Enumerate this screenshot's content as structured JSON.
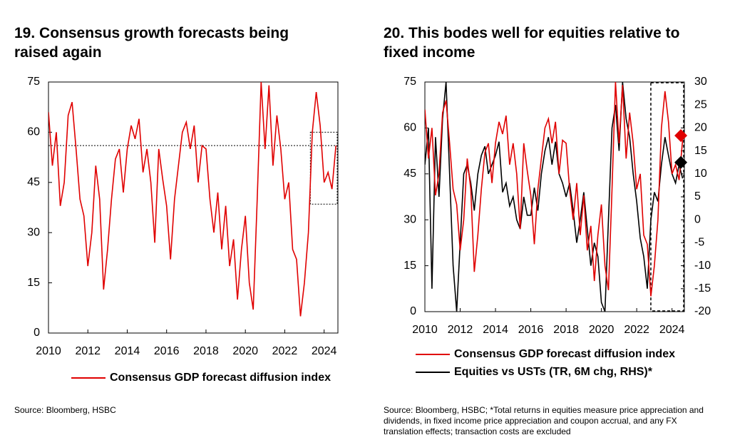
{
  "chart_data": [
    {
      "type": "line",
      "title": "19. Consensus growth forecasts being raised again",
      "x": [
        2010.0,
        2010.2,
        2010.4,
        2010.6,
        2010.8,
        2011.0,
        2011.2,
        2011.4,
        2011.6,
        2011.8,
        2012.0,
        2012.2,
        2012.4,
        2012.6,
        2012.8,
        2013.0,
        2013.2,
        2013.4,
        2013.6,
        2013.8,
        2014.0,
        2014.2,
        2014.4,
        2014.6,
        2014.8,
        2015.0,
        2015.2,
        2015.4,
        2015.6,
        2015.8,
        2016.0,
        2016.2,
        2016.4,
        2016.6,
        2016.8,
        2017.0,
        2017.2,
        2017.4,
        2017.6,
        2017.8,
        2018.0,
        2018.2,
        2018.4,
        2018.6,
        2018.8,
        2019.0,
        2019.2,
        2019.4,
        2019.6,
        2019.8,
        2020.0,
        2020.2,
        2020.4,
        2020.6,
        2020.8,
        2021.0,
        2021.2,
        2021.4,
        2021.6,
        2021.8,
        2022.0,
        2022.2,
        2022.4,
        2022.6,
        2022.8,
        2023.0,
        2023.2,
        2023.4,
        2023.6,
        2023.8,
        2024.0,
        2024.2,
        2024.4,
        2024.6
      ],
      "series": [
        {
          "name": "Consensus GDP forecast diffusion index",
          "color": "#e00000",
          "values": [
            66,
            50,
            60,
            38,
            45,
            65,
            69,
            55,
            40,
            35,
            20,
            30,
            50,
            40,
            13,
            25,
            40,
            52,
            55,
            42,
            55,
            62,
            58,
            64,
            48,
            55,
            45,
            27,
            55,
            46,
            38,
            22,
            40,
            50,
            60,
            63,
            55,
            62,
            45,
            56,
            55,
            40,
            30,
            42,
            25,
            38,
            20,
            28,
            10,
            25,
            35,
            15,
            7,
            40,
            75,
            55,
            74,
            50,
            65,
            55,
            40,
            45,
            25,
            22,
            5,
            15,
            30,
            60,
            72,
            62,
            45,
            48,
            43,
            56
          ]
        }
      ],
      "xlim": [
        2010,
        2024.7
      ],
      "xticks": [
        2010,
        2012,
        2014,
        2016,
        2018,
        2020,
        2022,
        2024
      ],
      "ylim": [
        0,
        75
      ],
      "yticks": [
        0,
        15,
        30,
        45,
        60,
        75
      ],
      "reference_line": 56,
      "highlight_box": {
        "x": [
          2023.3,
          2024.7
        ],
        "y": [
          38.5,
          60
        ]
      },
      "source": "Source: Bloomberg, HSBC"
    },
    {
      "type": "line",
      "title": "20. This bodes well for equities relative to fixed income",
      "x": [
        2010.0,
        2010.2,
        2010.4,
        2010.6,
        2010.8,
        2011.0,
        2011.2,
        2011.4,
        2011.6,
        2011.8,
        2012.0,
        2012.2,
        2012.4,
        2012.6,
        2012.8,
        2013.0,
        2013.2,
        2013.4,
        2013.6,
        2013.8,
        2014.0,
        2014.2,
        2014.4,
        2014.6,
        2014.8,
        2015.0,
        2015.2,
        2015.4,
        2015.6,
        2015.8,
        2016.0,
        2016.2,
        2016.4,
        2016.6,
        2016.8,
        2017.0,
        2017.2,
        2017.4,
        2017.6,
        2017.8,
        2018.0,
        2018.2,
        2018.4,
        2018.6,
        2018.8,
        2019.0,
        2019.2,
        2019.4,
        2019.6,
        2019.8,
        2020.0,
        2020.2,
        2020.4,
        2020.6,
        2020.8,
        2021.0,
        2021.2,
        2021.4,
        2021.6,
        2021.8,
        2022.0,
        2022.2,
        2022.4,
        2022.6,
        2022.8,
        2023.0,
        2023.2,
        2023.4,
        2023.6,
        2023.8,
        2024.0,
        2024.2,
        2024.4,
        2024.6
      ],
      "series": [
        {
          "name": "Consensus GDP forecast diffusion index",
          "color": "#e00000",
          "values": [
            66,
            50,
            60,
            38,
            45,
            65,
            69,
            55,
            40,
            35,
            20,
            30,
            50,
            40,
            13,
            25,
            40,
            52,
            55,
            42,
            55,
            62,
            58,
            64,
            48,
            55,
            45,
            27,
            55,
            46,
            38,
            22,
            40,
            50,
            60,
            63,
            55,
            62,
            45,
            56,
            55,
            40,
            30,
            42,
            25,
            38,
            20,
            28,
            10,
            25,
            35,
            15,
            7,
            40,
            75,
            55,
            74,
            50,
            65,
            55,
            40,
            45,
            25,
            22,
            5,
            15,
            30,
            60,
            72,
            62,
            45,
            48,
            43,
            56
          ],
          "marker": {
            "x": 2024.5,
            "value": 57.5
          }
        },
        {
          "name": "Equities vs USTs (TR, 6M chg, RHS)*",
          "color": "#000000",
          "axis": "y2",
          "values": [
            12,
            20,
            -15,
            18,
            5,
            22,
            30,
            10,
            -10,
            -20,
            -5,
            10,
            12,
            8,
            2,
            10,
            14,
            16,
            10,
            12,
            14,
            17,
            6,
            8,
            3,
            5,
            0,
            -2,
            5,
            1,
            1,
            7,
            2,
            10,
            15,
            18,
            12,
            17,
            10,
            8,
            5,
            8,
            2,
            -5,
            0,
            6,
            -2,
            -10,
            -5,
            -8,
            -18,
            -20,
            0,
            20,
            25,
            15,
            30,
            22,
            18,
            10,
            4,
            -4,
            -8,
            -15,
            0,
            6,
            4,
            12,
            18,
            14,
            10,
            8,
            12,
            9
          ],
          "marker": {
            "x": 2024.5,
            "value": 12.5
          }
        }
      ],
      "xlim": [
        2010,
        2024.7
      ],
      "xticks": [
        2010,
        2012,
        2014,
        2016,
        2018,
        2020,
        2022,
        2024
      ],
      "ylim": [
        0,
        75
      ],
      "yticks": [
        0,
        15,
        30,
        45,
        60,
        75
      ],
      "y2lim": [
        -20,
        30
      ],
      "y2ticks": [
        -20,
        -15,
        -10,
        -5,
        0,
        5,
        10,
        15,
        20,
        25,
        30
      ],
      "highlight_box": {
        "x": [
          2022.8,
          2024.7
        ],
        "y": [
          0,
          75
        ]
      },
      "source": "Source: Bloomberg, HSBC; *Total returns in equities measure price appreciation and dividends, in fixed income price appreciation and coupon accrual, and any FX translation effects; transaction costs are excluded"
    }
  ]
}
